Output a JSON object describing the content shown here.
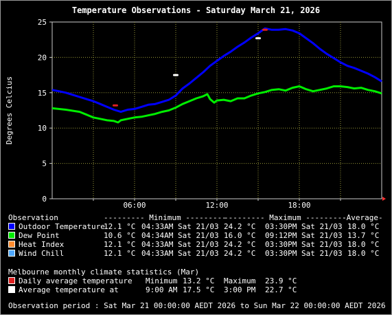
{
  "title": "Temperature Observations - Saturday March 21, 2026",
  "colors": {
    "background": "#000000",
    "grid": "#9a9a3a",
    "outdoor": "#0000ff",
    "dewpoint": "#00ee00",
    "heatindex": "#ff8c30",
    "windchill": "#4fa8ff",
    "daily_avg_marker": "#e02020",
    "avg_temp_marker": "#ffffff"
  },
  "chart_data": {
    "type": "line",
    "ylabel": "Degrees Celcius",
    "ylim": [
      0,
      25
    ],
    "yticks": [
      "0",
      "5",
      "10",
      "15",
      "20",
      "25"
    ],
    "xlim": [
      0,
      24
    ],
    "xticks": [
      {
        "hour": 6,
        "label": "06:00"
      },
      {
        "hour": 12,
        "label": "12:00"
      },
      {
        "hour": 18,
        "label": "18:00"
      }
    ],
    "grid": true,
    "series": [
      {
        "name": "Dew Point",
        "color": "#00ee00",
        "points": [
          [
            0,
            12.8
          ],
          [
            1,
            12.6
          ],
          [
            2,
            12.3
          ],
          [
            2.5,
            11.9
          ],
          [
            3,
            11.5
          ],
          [
            3.5,
            11.3
          ],
          [
            4,
            11.1
          ],
          [
            4.5,
            11.0
          ],
          [
            4.8,
            10.8
          ],
          [
            5,
            11.1
          ],
          [
            5.5,
            11.3
          ],
          [
            6,
            11.5
          ],
          [
            6.5,
            11.6
          ],
          [
            7,
            11.8
          ],
          [
            7.5,
            12.0
          ],
          [
            8,
            12.3
          ],
          [
            8.5,
            12.5
          ],
          [
            9,
            12.9
          ],
          [
            9.5,
            13.4
          ],
          [
            10,
            13.8
          ],
          [
            10.5,
            14.2
          ],
          [
            11,
            14.5
          ],
          [
            11.3,
            14.8
          ],
          [
            11.5,
            14.1
          ],
          [
            11.8,
            13.6
          ],
          [
            12,
            13.9
          ],
          [
            12.5,
            14.0
          ],
          [
            13,
            13.8
          ],
          [
            13.5,
            14.2
          ],
          [
            14,
            14.2
          ],
          [
            14.5,
            14.6
          ],
          [
            15,
            14.9
          ],
          [
            15.5,
            15.1
          ],
          [
            16,
            15.4
          ],
          [
            16.5,
            15.5
          ],
          [
            17,
            15.3
          ],
          [
            17.5,
            15.7
          ],
          [
            18,
            15.9
          ],
          [
            18.5,
            15.5
          ],
          [
            19,
            15.2
          ],
          [
            19.5,
            15.4
          ],
          [
            20,
            15.6
          ],
          [
            20.5,
            15.9
          ],
          [
            21,
            15.9
          ],
          [
            21.5,
            15.8
          ],
          [
            22,
            15.6
          ],
          [
            22.5,
            15.7
          ],
          [
            23,
            15.4
          ],
          [
            23.5,
            15.2
          ],
          [
            24,
            14.9
          ]
        ]
      },
      {
        "name": "Outdoor Temperature",
        "color": "#0000ff",
        "points": [
          [
            0,
            15.4
          ],
          [
            0.5,
            15.2
          ],
          [
            1,
            15.0
          ],
          [
            1.5,
            14.7
          ],
          [
            2,
            14.4
          ],
          [
            2.5,
            14.1
          ],
          [
            3,
            13.8
          ],
          [
            3.5,
            13.4
          ],
          [
            4,
            13.0
          ],
          [
            4.5,
            12.6
          ],
          [
            5,
            12.3
          ],
          [
            5.5,
            12.6
          ],
          [
            6,
            12.7
          ],
          [
            6.5,
            13.0
          ],
          [
            7,
            13.3
          ],
          [
            7.5,
            13.4
          ],
          [
            8,
            13.7
          ],
          [
            8.5,
            14.0
          ],
          [
            9,
            14.6
          ],
          [
            9.5,
            15.6
          ],
          [
            10,
            16.3
          ],
          [
            10.5,
            17.1
          ],
          [
            11,
            17.9
          ],
          [
            11.5,
            18.8
          ],
          [
            12,
            19.5
          ],
          [
            12.5,
            20.2
          ],
          [
            13,
            20.8
          ],
          [
            13.5,
            21.5
          ],
          [
            14,
            22.1
          ],
          [
            14.5,
            22.8
          ],
          [
            15,
            23.4
          ],
          [
            15.5,
            24.1
          ],
          [
            16,
            23.9
          ],
          [
            16.5,
            23.9
          ],
          [
            17,
            24.0
          ],
          [
            17.5,
            23.8
          ],
          [
            18,
            23.4
          ],
          [
            18.5,
            22.7
          ],
          [
            19,
            22.0
          ],
          [
            19.5,
            21.2
          ],
          [
            20,
            20.5
          ],
          [
            20.5,
            19.9
          ],
          [
            21,
            19.3
          ],
          [
            21.5,
            18.8
          ],
          [
            22,
            18.5
          ],
          [
            22.5,
            18.1
          ],
          [
            23,
            17.7
          ],
          [
            23.5,
            17.2
          ],
          [
            24,
            16.6
          ]
        ]
      }
    ],
    "markers": [
      {
        "name": "Daily average temperature",
        "hour": 4.6,
        "value": 13.2,
        "color": "#e02020"
      },
      {
        "name": "Daily average temperature",
        "hour": 15.5,
        "value": 23.9,
        "color": "#e02020"
      },
      {
        "name": "Average temperature at",
        "hour": 9.0,
        "value": 17.5,
        "color": "#ffffff"
      },
      {
        "name": "Average temperature at",
        "hour": 15.0,
        "value": 22.7,
        "color": "#ffffff"
      }
    ]
  },
  "legend": {
    "header": {
      "observation": "Observation",
      "minimum": "--------- Minimum ---------",
      "maximum": "--------- Maximum ---------",
      "average": "-Average-"
    },
    "rows": [
      {
        "label": "Outdoor Temperature",
        "color": "#0000ff",
        "min_val": "12.1 °C",
        "min_time": "04:33AM Sat 21/03",
        "max_val": "24.2 °C",
        "max_time": "03:30PM Sat 21/03",
        "avg": "18.0 °C"
      },
      {
        "label": "Dew Point",
        "color": "#00ee00",
        "min_val": "10.6 °C",
        "min_time": "04:34AM Sat 21/03",
        "max_val": "16.0 °C",
        "max_time": "09:12PM Sat 21/03",
        "avg": "13.7 °C"
      },
      {
        "label": "Heat Index",
        "color": "#ff8c30",
        "min_val": "12.1 °C",
        "min_time": "04:33AM Sat 21/03",
        "max_val": "24.2 °C",
        "max_time": "03:30PM Sat 21/03",
        "avg": "18.0 °C"
      },
      {
        "label": "Wind Chill",
        "color": "#4fa8ff",
        "min_val": "12.1 °C",
        "min_time": "04:33AM Sat 21/03",
        "max_val": "24.2 °C",
        "max_time": "03:30PM Sat 21/03",
        "avg": "18.0 °C"
      }
    ]
  },
  "climate": {
    "title": "Melbourne monthly climate statistics (Mar)",
    "daily_avg": {
      "label": "Daily average temperature",
      "min_label": "Minimum",
      "min_value": "13.2 °C",
      "max_label": "Maximum",
      "max_value": "23.9 °C",
      "color": "#e02020"
    },
    "avg_at": {
      "label": "Average temperature at",
      "t1": "9:00 AM",
      "v1": "17.5 °C",
      "t2": "3:00 PM",
      "v2": "22.7 °C",
      "color": "#ffffff"
    }
  },
  "period": "Observation period : Sat Mar 21 00:00:00 AEDT 2026 to Sun Mar 22 00:00:00 AEDT 2026"
}
